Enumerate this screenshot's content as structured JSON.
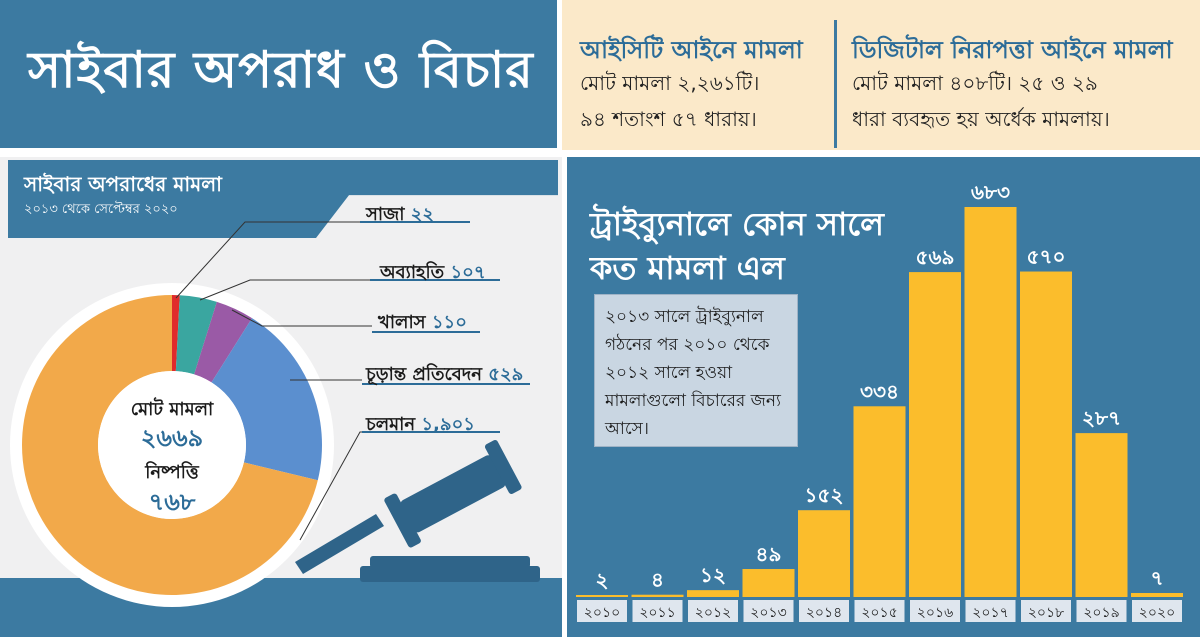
{
  "header": {
    "title": "সাইবার অপরাধ ও বিচার"
  },
  "info": {
    "ict": {
      "heading": "আইসিটি আইনে মামলা",
      "line1": "মোট মামলা ২,২৬১টি।",
      "line2": "৯৪ শতাংশ ৫৭ ধারায়।"
    },
    "dsa": {
      "heading": "ডিজিটাল নিরাপত্তা আইনে মামলা",
      "line1": "মোট মামলা ৪০৮টি। ২৫ ও ২৯",
      "line2": "ধারা ব্যবহৃত হয় অর্ধেক মামলায়।"
    }
  },
  "left": {
    "title": "সাইবার অপরাধের মামলা",
    "subtitle": "২০১৩ থেকে সেপ্টেম্বর ২০২০",
    "center_total_label": "মোট মামলা",
    "center_total_value": "২৬৬৯",
    "center_disposed_label": "নিষ্পত্তি",
    "center_disposed_value": "৭৬৮"
  },
  "right": {
    "title_line1": "ট্রাইব্যুনালে কোন সালে",
    "title_line2": "কত মামলা এল",
    "note": "২০১৩ সালে ট্রাইব্যুনাল গঠনের পর ২০১০ থেকে ২০১২ সালে হওয়া মামলাগুলো বিচারের জন্য আসে।"
  },
  "chart_data": [
    {
      "type": "pie",
      "title": "সাইবার অপরাধের মামলা",
      "subtitle": "২০১৩ থেকে সেপ্টেম্বর ২০২০",
      "slices": [
        {
          "name": "সাজা",
          "value": 22,
          "label": "২২",
          "color": "#e02b2b"
        },
        {
          "name": "অব্যাহতি",
          "value": 107,
          "label": "১০৭",
          "color": "#3aa6a0"
        },
        {
          "name": "খালাস",
          "value": 110,
          "label": "১১০",
          "color": "#9a5aa6"
        },
        {
          "name": "চূড়ান্ত প্রতিবেদন",
          "value": 529,
          "label": "৫২৯",
          "color": "#5b8fcf"
        },
        {
          "name": "চলমান",
          "value": 1901,
          "label": "১,৯০১",
          "color": "#f2a94a"
        }
      ]
    },
    {
      "type": "bar",
      "title": "ট্রাইব্যুনালে কোন সালে কত মামলা এল",
      "categories": [
        "২০১০",
        "২০১১",
        "২০১২",
        "২০১৩",
        "২০১৪",
        "২০১৫",
        "২০১৬",
        "২০১৭",
        "২০১৮",
        "২০১৯",
        "২০২০"
      ],
      "values": [
        2,
        4,
        12,
        49,
        152,
        334,
        569,
        683,
        570,
        287,
        7
      ],
      "value_labels": [
        "২",
        "৪",
        "১২",
        "৪৯",
        "১৫২",
        "৩৩৪",
        "৫৬৯",
        "৬৮৩",
        "৫৭০",
        "২৮৭",
        "৭"
      ],
      "bar_color": "#fbbd2c",
      "ylim": [
        0,
        683
      ]
    }
  ]
}
